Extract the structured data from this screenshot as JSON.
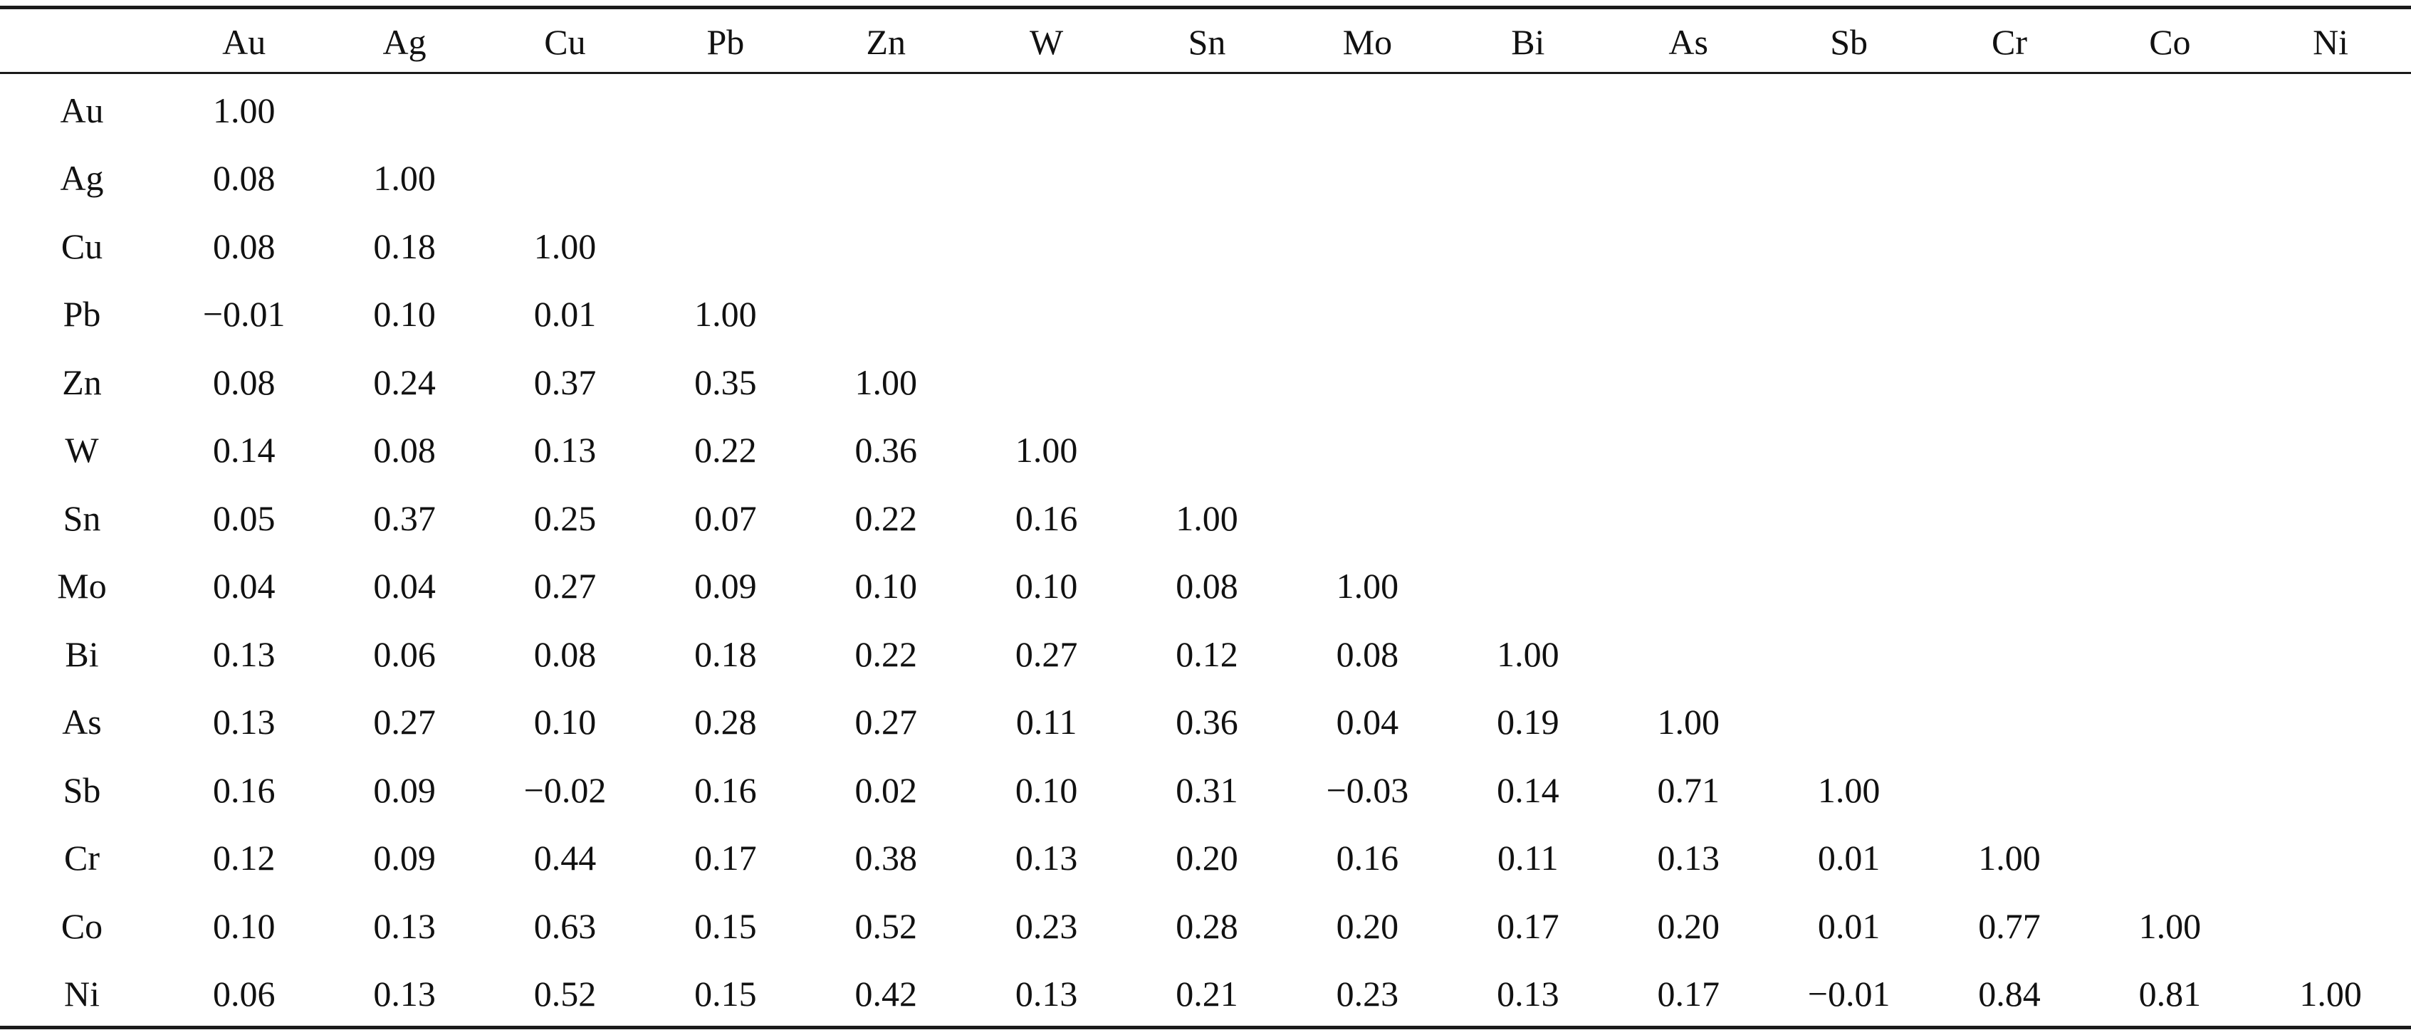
{
  "table": {
    "headers": [
      "Au",
      "Ag",
      "Cu",
      "Pb",
      "Zn",
      "W",
      "Sn",
      "Mo",
      "Bi",
      "As",
      "Sb",
      "Cr",
      "Co",
      "Ni"
    ],
    "rows": [
      {
        "label": "Au",
        "values": [
          "1.00"
        ]
      },
      {
        "label": "Ag",
        "values": [
          "0.08",
          "1.00"
        ]
      },
      {
        "label": "Cu",
        "values": [
          "0.08",
          "0.18",
          "1.00"
        ]
      },
      {
        "label": "Pb",
        "values": [
          "−0.01",
          "0.10",
          "0.01",
          "1.00"
        ]
      },
      {
        "label": "Zn",
        "values": [
          "0.08",
          "0.24",
          "0.37",
          "0.35",
          "1.00"
        ]
      },
      {
        "label": "W",
        "values": [
          "0.14",
          "0.08",
          "0.13",
          "0.22",
          "0.36",
          "1.00"
        ]
      },
      {
        "label": "Sn",
        "values": [
          "0.05",
          "0.37",
          "0.25",
          "0.07",
          "0.22",
          "0.16",
          "1.00"
        ]
      },
      {
        "label": "Mo",
        "values": [
          "0.04",
          "0.04",
          "0.27",
          "0.09",
          "0.10",
          "0.10",
          "0.08",
          "1.00"
        ]
      },
      {
        "label": "Bi",
        "values": [
          "0.13",
          "0.06",
          "0.08",
          "0.18",
          "0.22",
          "0.27",
          "0.12",
          "0.08",
          "1.00"
        ]
      },
      {
        "label": "As",
        "values": [
          "0.13",
          "0.27",
          "0.10",
          "0.28",
          "0.27",
          "0.11",
          "0.36",
          "0.04",
          "0.19",
          "1.00"
        ]
      },
      {
        "label": "Sb",
        "values": [
          "0.16",
          "0.09",
          "−0.02",
          "0.16",
          "0.02",
          "0.10",
          "0.31",
          "−0.03",
          "0.14",
          "0.71",
          "1.00"
        ]
      },
      {
        "label": "Cr",
        "values": [
          "0.12",
          "0.09",
          "0.44",
          "0.17",
          "0.38",
          "0.13",
          "0.20",
          "0.16",
          "0.11",
          "0.13",
          "0.01",
          "1.00"
        ]
      },
      {
        "label": "Co",
        "values": [
          "0.10",
          "0.13",
          "0.63",
          "0.15",
          "0.52",
          "0.23",
          "0.28",
          "0.20",
          "0.17",
          "0.20",
          "0.01",
          "0.77",
          "1.00"
        ]
      },
      {
        "label": "Ni",
        "values": [
          "0.06",
          "0.13",
          "0.52",
          "0.15",
          "0.42",
          "0.13",
          "0.21",
          "0.23",
          "0.13",
          "0.17",
          "−0.01",
          "0.84",
          "0.81",
          "1.00"
        ]
      }
    ]
  }
}
